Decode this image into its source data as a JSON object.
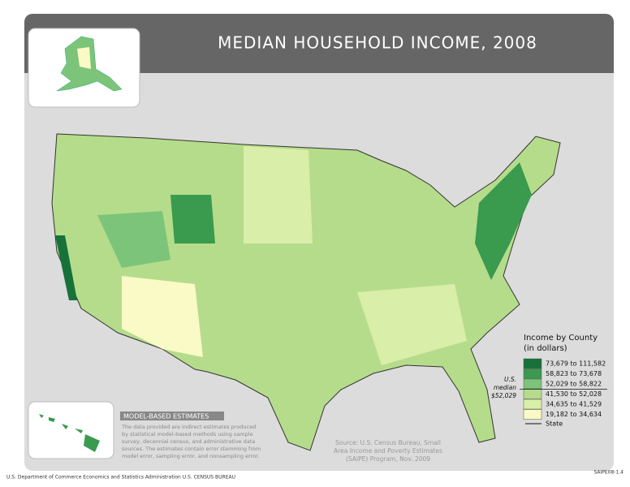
{
  "title": "MEDIAN HOUSEHOLD INCOME, 2008",
  "legend": {
    "title": [
      "Income by County",
      "(in dollars)"
    ],
    "entries": [
      {
        "label": "73,679 to 111,582",
        "color": "#17723a"
      },
      {
        "label": "58,823 to 73,678",
        "color": "#3a9a4e"
      },
      {
        "label": "52,029 to 58,822",
        "color": "#7cc47a"
      },
      {
        "label": "41,530 to 52,028",
        "color": "#b5dc8b"
      },
      {
        "label": "34,635 to 41,529",
        "color": "#d9eea8"
      },
      {
        "label": "19,182 to 34,634",
        "color": "#fafac6"
      }
    ],
    "state": "State",
    "median_note": [
      "U.S.",
      "median",
      "$52,029"
    ]
  },
  "model_based": {
    "heading": "MODEL-BASED ESTIMATES",
    "text": [
      "The data provided are indirect estimates produced",
      "by statistical model-based methods using sample",
      "survey, decennial census, and administrative data",
      "sources. The estimates contain error stemming from",
      "model error, sampling error, and nonsampling error."
    ]
  },
  "source": [
    "Source: U.S. Census Bureau, Small",
    "Area Income and Poverty Estimates",
    "(SAIPE) Program, Nov. 2009"
  ],
  "footer": {
    "left": "U.S. Department of Commerce  Economics and Statistics Administration  U.S. CENSUS BUREAU",
    "right": "SAIPE08-1.4"
  }
}
